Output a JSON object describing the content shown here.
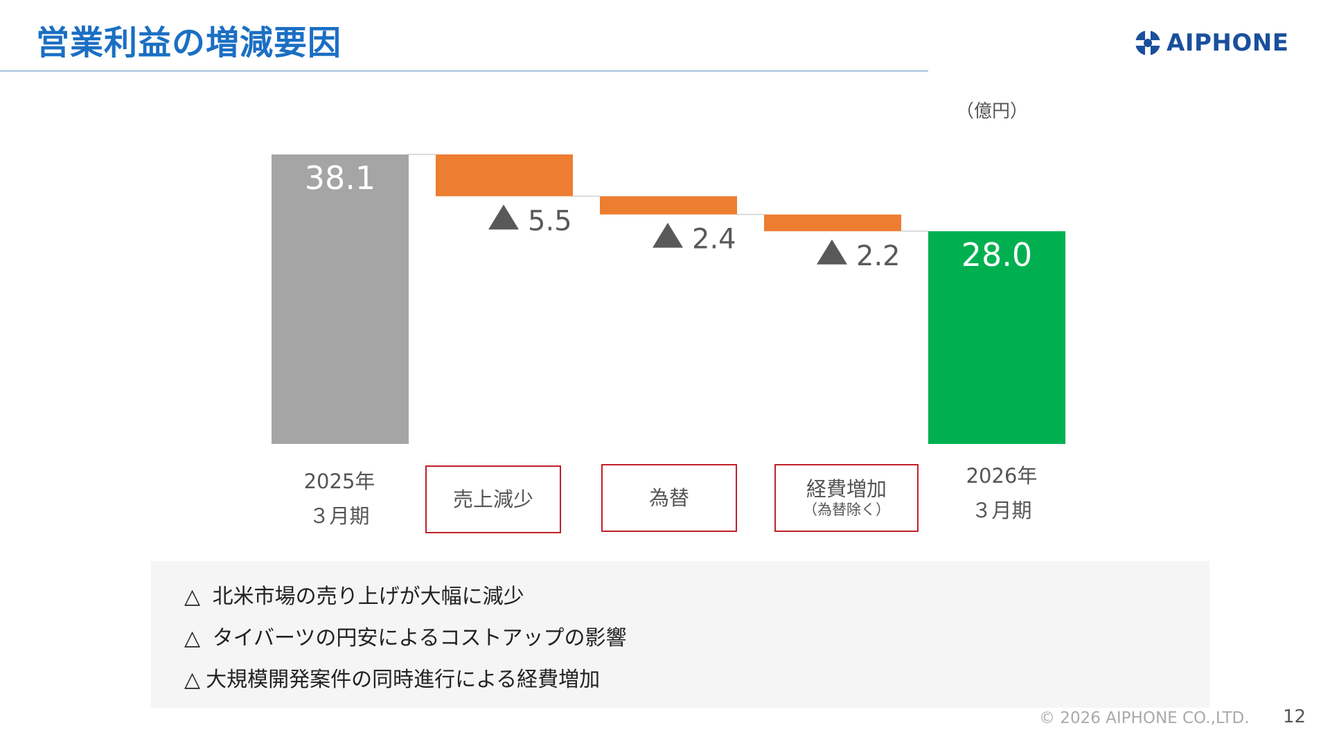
{
  "header": {
    "title": "営業利益の増減要因",
    "logo_text": "AIPHONE"
  },
  "unit_label": "（億円）",
  "colors": {
    "title": "#1b6fc3",
    "start_bar": "#a5a5a5",
    "decrease_bar": "#ed7d31",
    "end_bar": "#00b050",
    "box_border": "#c0202a"
  },
  "chart_data": {
    "type": "bar",
    "subtype": "waterfall",
    "categories": [
      "2025年 3月期",
      "売上減少",
      "為替",
      "経費増加（為替除く）",
      "2026年 3月期"
    ],
    "steps": [
      {
        "kind": "total",
        "value": 38.1,
        "label": "38.1"
      },
      {
        "kind": "decrease",
        "value": -5.5,
        "label": "▲ 5.5"
      },
      {
        "kind": "decrease",
        "value": -2.4,
        "label": "▲ 2.4"
      },
      {
        "kind": "decrease",
        "value": -2.2,
        "label": "▲ 2.2"
      },
      {
        "kind": "total",
        "value": 28.0,
        "label": "28.0"
      }
    ],
    "ylim": [
      0,
      38.1
    ],
    "unit": "億円",
    "grid": false,
    "legend": "none"
  },
  "categories_display": [
    {
      "line1": "2025年",
      "line2": "３月期",
      "boxed": false
    },
    {
      "main": "売上減少",
      "sub": "",
      "boxed": true
    },
    {
      "main": "為替",
      "sub": "",
      "boxed": true
    },
    {
      "main": "経費増加",
      "sub": "（為替除く）",
      "boxed": true
    },
    {
      "line1": "2026年",
      "line2": "３月期",
      "boxed": false
    }
  ],
  "notes": [
    {
      "marker": "△",
      "text": " 北米市場の売り上げが大幅に減少"
    },
    {
      "marker": "△",
      "text": " タイバーツの円安によるコストアップの影響"
    },
    {
      "marker": "△",
      "text": "大規模開発案件の同時進行による経費増加"
    }
  ],
  "footer": {
    "copyright": "© 2026 AIPHONE CO.,LTD.",
    "page_number": "12"
  }
}
